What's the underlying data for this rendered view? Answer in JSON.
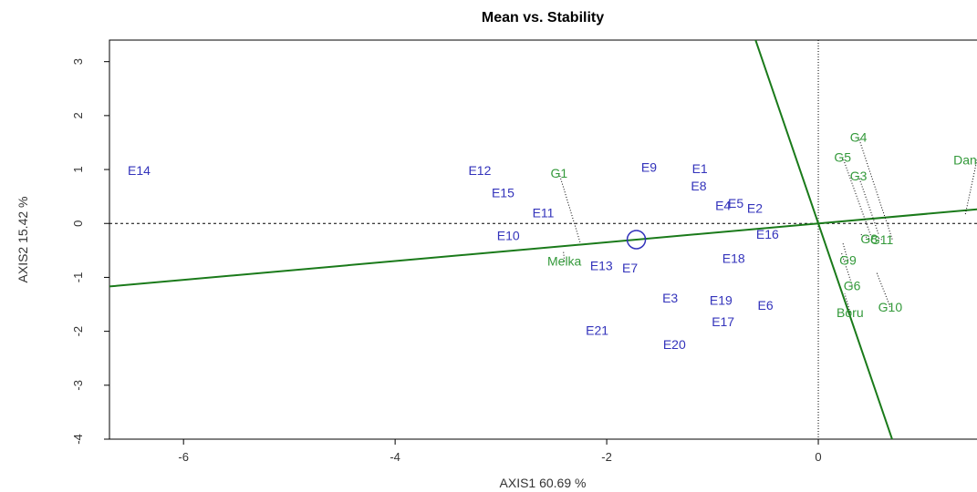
{
  "chart_data": {
    "type": "scatter",
    "title": "Mean vs. Stability",
    "xlabel": "AXIS1 60.69 %",
    "ylabel": "AXIS2 15.42 %",
    "xlim": [
      -6.7,
      1.5
    ],
    "ylim": [
      -4.0,
      3.4
    ],
    "x_ticks": [
      -6,
      -4,
      -2,
      0
    ],
    "y_ticks": [
      -4,
      -3,
      -2,
      -1,
      0,
      1,
      2,
      3
    ],
    "grid": false,
    "colors": {
      "environment": "#3333bb",
      "genotype": "#33993a",
      "axis_line": "#1a7a1a"
    },
    "average_environment": {
      "x": -1.72,
      "y": -0.3
    },
    "environments": [
      {
        "name": "E1",
        "x": -1.12,
        "y": 1.02
      },
      {
        "name": "E2",
        "x": -0.6,
        "y": 0.28
      },
      {
        "name": "E3",
        "x": -1.4,
        "y": -1.38
      },
      {
        "name": "E4",
        "x": -0.9,
        "y": 0.33
      },
      {
        "name": "E5",
        "x": -0.78,
        "y": 0.38
      },
      {
        "name": "E6",
        "x": -0.5,
        "y": -1.52
      },
      {
        "name": "E7",
        "x": -1.78,
        "y": -0.82
      },
      {
        "name": "E8",
        "x": -1.13,
        "y": 0.7
      },
      {
        "name": "E9",
        "x": -1.6,
        "y": 1.04
      },
      {
        "name": "E10",
        "x": -2.93,
        "y": -0.22
      },
      {
        "name": "E11",
        "x": -2.6,
        "y": 0.2
      },
      {
        "name": "E12",
        "x": -3.2,
        "y": 0.98
      },
      {
        "name": "E13",
        "x": -2.05,
        "y": -0.78
      },
      {
        "name": "E14",
        "x": -6.42,
        "y": 0.98
      },
      {
        "name": "E15",
        "x": -2.98,
        "y": 0.57
      },
      {
        "name": "E16",
        "x": -0.48,
        "y": -0.2
      },
      {
        "name": "E17",
        "x": -0.9,
        "y": -1.82
      },
      {
        "name": "E18",
        "x": -0.8,
        "y": -0.65
      },
      {
        "name": "E19",
        "x": -0.92,
        "y": -1.42
      },
      {
        "name": "E20",
        "x": -1.36,
        "y": -2.24
      },
      {
        "name": "E21",
        "x": -2.09,
        "y": -1.98
      }
    ],
    "genotypes": [
      {
        "name": "G1",
        "x": -2.45,
        "y": 0.93,
        "px": -2.25,
        "py": -0.36
      },
      {
        "name": "G3",
        "x": 0.38,
        "y": 0.88,
        "px": 0.57,
        "py": -0.2
      },
      {
        "name": "G4",
        "x": 0.38,
        "y": 1.6,
        "px": 0.7,
        "py": -0.3
      },
      {
        "name": "G5",
        "x": 0.23,
        "y": 1.23,
        "px": 0.5,
        "py": -0.25
      },
      {
        "name": "G6",
        "x": 0.32,
        "y": -1.15,
        "px": 0.22,
        "py": -0.55
      },
      {
        "name": "G8",
        "x": 0.48,
        "y": -0.28,
        "px": 0.4,
        "py": -0.2
      },
      {
        "name": "G9",
        "x": 0.28,
        "y": -0.68,
        "px": 0.23,
        "py": -0.35
      },
      {
        "name": "G10",
        "x": 0.68,
        "y": -1.55,
        "px": 0.55,
        "py": -0.9
      },
      {
        "name": "G11",
        "x": 0.6,
        "y": -0.3,
        "px": 0.51,
        "py": -0.22
      },
      {
        "name": "Danda'a",
        "x": 1.5,
        "y": 1.18,
        "px": 1.39,
        "py": 0.17
      },
      {
        "name": "Melka",
        "x": -2.4,
        "y": -0.7,
        "px": -2.41,
        "py": -0.5
      },
      {
        "name": "Boru",
        "x": 0.3,
        "y": -1.65,
        "px": 0.25,
        "py": -1.3
      }
    ]
  }
}
